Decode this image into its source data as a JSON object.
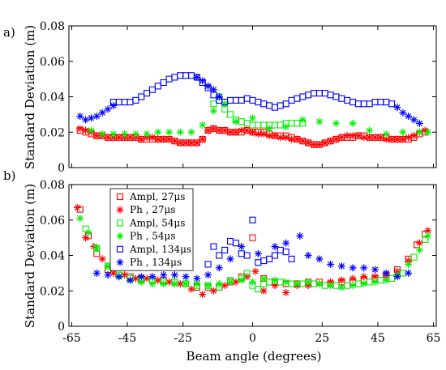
{
  "xlabel": "Beam angle (degrees)",
  "chart_data": [
    {
      "type": "scatter",
      "panel_label": "a)",
      "ylabel": "Standard Deviation (m)",
      "xlim": [
        -66,
        66
      ],
      "ylim": [
        0,
        0.08
      ],
      "xticks": [
        -65,
        -45,
        -25,
        0,
        25,
        45,
        65
      ],
      "xtick_labels": [
        "",
        "",
        "",
        "",
        "",
        "",
        ""
      ],
      "yticks": [
        0,
        0.02,
        0.04,
        0.06,
        0.08
      ],
      "ytick_labels": [
        "0",
        "0.02",
        "0.04",
        "0.06",
        "0.08"
      ],
      "grid": false,
      "series": [
        {
          "color": "#ff0000",
          "marker": "square",
          "x": [
            -62,
            -60,
            -58,
            -56,
            -54,
            -52,
            -50,
            -48,
            -46,
            -44,
            -42,
            -40,
            -38,
            -36,
            -34,
            -32,
            -30,
            -28,
            -26,
            -24,
            -22,
            -20,
            -18,
            -16,
            -14,
            -12,
            -10,
            -8,
            -6,
            -4,
            -2,
            0,
            2,
            4,
            6,
            8,
            10,
            12,
            14,
            16,
            18,
            20,
            22,
            24,
            26,
            28,
            30,
            32,
            34,
            36,
            38,
            40,
            42,
            44,
            46,
            48,
            50,
            52,
            54,
            56,
            58,
            60,
            62
          ],
          "y": [
            0.021,
            0.02,
            0.019,
            0.018,
            0.018,
            0.017,
            0.017,
            0.017,
            0.017,
            0.017,
            0.017,
            0.016,
            0.016,
            0.016,
            0.016,
            0.016,
            0.016,
            0.015,
            0.014,
            0.014,
            0.014,
            0.014,
            0.016,
            0.021,
            0.022,
            0.021,
            0.021,
            0.02,
            0.02,
            0.02,
            0.021,
            0.02,
            0.02,
            0.02,
            0.019,
            0.018,
            0.018,
            0.018,
            0.017,
            0.016,
            0.015,
            0.014,
            0.013,
            0.013,
            0.014,
            0.015,
            0.016,
            0.017,
            0.017,
            0.017,
            0.018,
            0.018,
            0.017,
            0.017,
            0.017,
            0.017,
            0.016,
            0.016,
            0.016,
            0.016,
            0.017,
            0.019,
            0.02
          ]
        },
        {
          "color": "#ff0000",
          "marker": "star",
          "x": [
            -62,
            -60,
            -58,
            -56,
            -54,
            -52,
            -50,
            -48,
            -46,
            -44,
            -42,
            -40,
            -38,
            -36,
            -34,
            -32,
            -30,
            -28,
            -26,
            -24,
            -22,
            -20,
            -18,
            -16,
            -14,
            -12,
            -10,
            -8,
            -6,
            -4,
            -2,
            0,
            2,
            4,
            6,
            8,
            10,
            12,
            14,
            16,
            18,
            20,
            22,
            24,
            26,
            28,
            30,
            32,
            34,
            36,
            38,
            40,
            42,
            44,
            46,
            48,
            50,
            52,
            54,
            56,
            58,
            60,
            62
          ],
          "y": [
            0.022,
            0.021,
            0.02,
            0.018,
            0.018,
            0.017,
            0.017,
            0.017,
            0.017,
            0.017,
            0.017,
            0.016,
            0.017,
            0.017,
            0.016,
            0.016,
            0.016,
            0.015,
            0.014,
            0.014,
            0.014,
            0.014,
            0.016,
            0.021,
            0.022,
            0.021,
            0.021,
            0.02,
            0.02,
            0.021,
            0.021,
            0.02,
            0.019,
            0.019,
            0.018,
            0.018,
            0.017,
            0.017,
            0.016,
            0.016,
            0.015,
            0.014,
            0.013,
            0.013,
            0.014,
            0.015,
            0.016,
            0.017,
            0.018,
            0.018,
            0.018,
            0.017,
            0.017,
            0.017,
            0.017,
            0.016,
            0.016,
            0.016,
            0.016,
            0.017,
            0.018,
            0.02,
            0.021
          ]
        },
        {
          "color": "#00ee00",
          "marker": "square",
          "x": [
            -14,
            -12,
            -10,
            -8,
            -6,
            -4,
            -2,
            0,
            2,
            4,
            6,
            8,
            10,
            12,
            14,
            16,
            18
          ],
          "y": [
            0.036,
            0.04,
            0.033,
            0.03,
            0.027,
            0.026,
            0.025,
            0.024,
            0.024,
            0.024,
            0.024,
            0.024,
            0.024,
            0.025,
            0.025,
            0.025,
            0.025
          ]
        },
        {
          "color": "#00ee00",
          "marker": "star",
          "x": [
            -58,
            -54,
            -50,
            -46,
            -42,
            -38,
            -34,
            -30,
            -26,
            -22,
            -18,
            -14,
            -10,
            -6,
            0,
            6,
            12,
            18,
            24,
            30,
            36,
            42,
            48,
            54,
            60,
            63
          ],
          "y": [
            0.021,
            0.019,
            0.019,
            0.019,
            0.019,
            0.019,
            0.02,
            0.02,
            0.02,
            0.02,
            0.024,
            0.032,
            0.036,
            0.026,
            0.028,
            0.022,
            0.023,
            0.027,
            0.026,
            0.025,
            0.025,
            0.021,
            0.019,
            0.02,
            0.02,
            0.02
          ]
        },
        {
          "color": "#0000ff",
          "marker": "square",
          "x": [
            -50,
            -48,
            -46,
            -44,
            -42,
            -40,
            -38,
            -36,
            -34,
            -32,
            -30,
            -28,
            -26,
            -24,
            -22,
            -20,
            -18,
            -16,
            -14,
            -12,
            -10,
            -8,
            -6,
            -4,
            -2,
            0,
            2,
            4,
            6,
            8,
            10,
            12,
            14,
            16,
            18,
            20,
            22,
            24,
            26,
            28,
            30,
            32,
            34,
            36,
            38,
            40,
            42,
            44,
            46,
            48,
            50
          ],
          "y": [
            0.037,
            0.037,
            0.037,
            0.037,
            0.038,
            0.04,
            0.042,
            0.044,
            0.046,
            0.048,
            0.05,
            0.051,
            0.052,
            0.052,
            0.052,
            0.051,
            0.048,
            0.045,
            0.041,
            0.038,
            0.037,
            0.038,
            0.038,
            0.038,
            0.039,
            0.038,
            0.037,
            0.036,
            0.035,
            0.034,
            0.035,
            0.036,
            0.038,
            0.039,
            0.04,
            0.041,
            0.042,
            0.042,
            0.042,
            0.041,
            0.04,
            0.039,
            0.038,
            0.037,
            0.036,
            0.036,
            0.036,
            0.037,
            0.037,
            0.037,
            0.036
          ]
        },
        {
          "color": "#0000ff",
          "marker": "star",
          "x": [
            -62,
            -60,
            -58,
            -56,
            -54,
            -52,
            -50,
            -20,
            -18,
            -16,
            -14,
            -12,
            52,
            54,
            56,
            58,
            60
          ],
          "y": [
            0.029,
            0.027,
            0.028,
            0.029,
            0.031,
            0.033,
            0.035,
            0.051,
            0.049,
            0.046,
            0.044,
            0.04,
            0.034,
            0.031,
            0.029,
            0.027,
            0.025
          ]
        }
      ]
    },
    {
      "type": "scatter",
      "panel_label": "b)",
      "ylabel": "Standard Deviation (m)",
      "xlim": [
        -66,
        66
      ],
      "ylim": [
        0,
        0.08
      ],
      "xticks": [
        -65,
        -45,
        -25,
        0,
        25,
        45,
        65
      ],
      "xtick_labels": [
        "-65",
        "-45",
        "-25",
        "0",
        "25",
        "45",
        "65"
      ],
      "yticks": [
        0,
        0.02,
        0.04,
        0.06,
        0.08
      ],
      "ytick_labels": [
        "0",
        "0.02",
        "0.04",
        "0.06",
        "0.08"
      ],
      "grid": false,
      "legend_placement": "top-left",
      "series": [
        {
          "name": "Ampl, 27μs",
          "color": "#ff0000",
          "marker": "square",
          "x": [
            -62,
            -59,
            -56,
            -52,
            -48,
            -44,
            -40,
            -36,
            -32,
            -28,
            -24,
            -20,
            -16,
            -12,
            -8,
            -4,
            0,
            4,
            8,
            12,
            16,
            20,
            24,
            28,
            32,
            36,
            40,
            44,
            48,
            52,
            56,
            59,
            62
          ],
          "y": [
            0.066,
            0.051,
            0.041,
            0.032,
            0.029,
            0.028,
            0.027,
            0.026,
            0.026,
            0.025,
            0.024,
            0.022,
            0.022,
            0.022,
            0.025,
            0.028,
            0.05,
            0.027,
            0.025,
            0.024,
            0.024,
            0.025,
            0.025,
            0.024,
            0.025,
            0.025,
            0.026,
            0.027,
            0.029,
            0.032,
            0.038,
            0.046,
            0.052
          ]
        },
        {
          "name": "Ph , 27μs",
          "color": "#ff0000",
          "marker": "star",
          "x": [
            -63,
            -60,
            -57,
            -54,
            -50,
            -46,
            -42,
            -38,
            -34,
            -30,
            -26,
            -22,
            -18,
            -14,
            -10,
            -6,
            -2,
            1,
            4,
            8,
            12,
            16,
            20,
            24,
            28,
            32,
            36,
            40,
            44,
            48,
            52,
            56,
            60,
            63
          ],
          "y": [
            0.067,
            0.05,
            0.045,
            0.038,
            0.03,
            0.029,
            0.027,
            0.027,
            0.026,
            0.025,
            0.024,
            0.021,
            0.018,
            0.02,
            0.023,
            0.025,
            0.028,
            0.031,
            0.02,
            0.023,
            0.019,
            0.023,
            0.023,
            0.024,
            0.025,
            0.026,
            0.027,
            0.028,
            0.028,
            0.029,
            0.031,
            0.037,
            0.047,
            0.054
          ]
        },
        {
          "name": "Ampl, 54μs",
          "color": "#00ee00",
          "marker": "square",
          "x": [
            -60,
            -56,
            -52,
            -48,
            -44,
            -40,
            -36,
            -32,
            -28,
            -24,
            -20,
            -16,
            -12,
            -8,
            -4,
            -2,
            0,
            2,
            4,
            6,
            10,
            14,
            18,
            22,
            26,
            30,
            34,
            38,
            42,
            46,
            50,
            54,
            58,
            62
          ],
          "y": [
            0.055,
            0.044,
            0.034,
            0.029,
            0.027,
            0.026,
            0.026,
            0.025,
            0.025,
            0.024,
            0.023,
            0.023,
            0.022,
            0.026,
            0.027,
            0.03,
            0.023,
            0.021,
            0.024,
            0.025,
            0.025,
            0.024,
            0.024,
            0.024,
            0.023,
            0.023,
            0.023,
            0.024,
            0.025,
            0.026,
            0.027,
            0.03,
            0.039,
            0.049
          ]
        },
        {
          "name": "Ph , 54μs",
          "color": "#00ee00",
          "marker": "star",
          "x": [
            -62,
            -59,
            -56,
            -52,
            -48,
            -44,
            -40,
            -36,
            -32,
            -28,
            -24,
            -20,
            -16,
            -12,
            -8,
            -4,
            0,
            4,
            8,
            12,
            16,
            20,
            24,
            28,
            32,
            36,
            40,
            44,
            48,
            52,
            56,
            60,
            63
          ],
          "y": [
            0.061,
            0.053,
            0.044,
            0.034,
            0.028,
            0.026,
            0.025,
            0.024,
            0.024,
            0.024,
            0.024,
            0.024,
            0.023,
            0.024,
            0.025,
            0.026,
            0.025,
            0.027,
            0.026,
            0.025,
            0.024,
            0.025,
            0.024,
            0.023,
            0.022,
            0.023,
            0.024,
            0.025,
            0.026,
            0.029,
            0.035,
            0.043,
            0.051
          ]
        },
        {
          "name": "Ampl, 134μs",
          "color": "#0000ff",
          "marker": "square",
          "x": [
            -16,
            -14,
            -12,
            -10,
            -8,
            -6,
            -4,
            -2,
            0,
            2,
            4,
            6,
            8,
            10,
            12,
            14
          ],
          "y": [
            0.035,
            0.045,
            0.04,
            0.043,
            0.048,
            0.047,
            0.041,
            0.04,
            0.06,
            0.036,
            0.037,
            0.038,
            0.04,
            0.043,
            0.042,
            0.038
          ]
        },
        {
          "name": "Ph , 134μs",
          "color": "#0000ff",
          "marker": "star",
          "x": [
            -56,
            -52,
            -48,
            -44,
            -40,
            -36,
            -32,
            -28,
            -24,
            -20,
            -16,
            -12,
            -8,
            -4,
            2,
            8,
            12,
            17,
            20,
            24,
            28,
            32,
            36,
            40,
            44,
            48,
            52,
            56
          ],
          "y": [
            0.03,
            0.029,
            0.028,
            0.026,
            0.028,
            0.028,
            0.029,
            0.029,
            0.028,
            0.027,
            0.029,
            0.033,
            0.038,
            0.045,
            0.041,
            0.045,
            0.047,
            0.051,
            0.04,
            0.038,
            0.035,
            0.034,
            0.033,
            0.033,
            0.032,
            0.03,
            0.028,
            0.03
          ]
        }
      ]
    }
  ]
}
